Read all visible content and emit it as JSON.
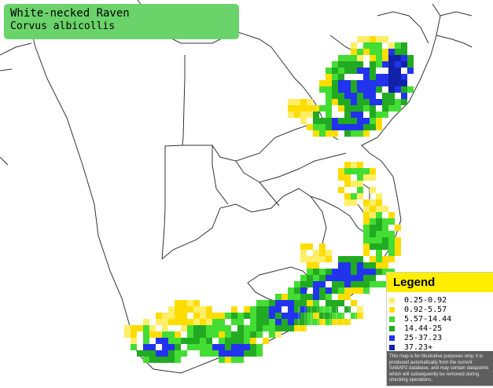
{
  "title": {
    "common_name": "White-necked Raven",
    "scientific_name": "Corvus albicollis",
    "box_color": "#6ad36a"
  },
  "legend": {
    "heading": "Legend",
    "heading_color": "#ffee00",
    "classes": [
      {
        "label": "0.25-0.92",
        "color": "#ffee66"
      },
      {
        "label": "0.92-5.57",
        "color": "#ffdd00"
      },
      {
        "label": "5.57-14.44",
        "color": "#44dd33"
      },
      {
        "label": "14.44-25",
        "color": "#22aa22"
      },
      {
        "label": "25-37.23",
        "color": "#2233ee"
      },
      {
        "label": "37.23+",
        "color": "#1122aa"
      }
    ],
    "note": "This map is for illustrative purposes only; it is produced automatically from the current SABAP2 database, and may contain datapoints which will subsequently be removed during checking operations."
  },
  "map": {
    "background_color": "#ffffff",
    "border_color": "#333333",
    "grid_color": "#ffffff"
  }
}
